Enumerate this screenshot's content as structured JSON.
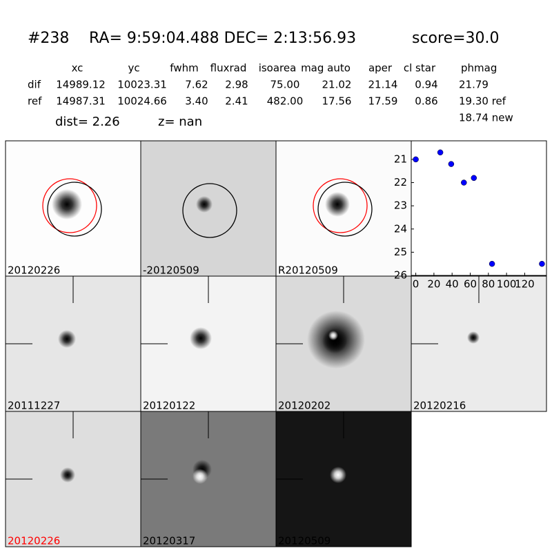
{
  "header": {
    "id": "#238",
    "coords": "RA= 9:59:04.488 DEC= 2:13:56.93",
    "score": "score=30.0"
  },
  "table": {
    "columns": [
      "xc",
      "yc",
      "fwhm",
      "fluxrad",
      "isoarea",
      "mag auto",
      "aper",
      "cl star",
      "phmag"
    ],
    "rows": [
      [
        "dif",
        "14989.12",
        "10023.31",
        "7.62",
        "2.98",
        "75.00",
        "21.02",
        "21.14",
        "0.94",
        "21.79"
      ],
      [
        "ref",
        "14987.31",
        "10024.66",
        "3.40",
        "2.41",
        "482.00",
        "17.56",
        "17.59",
        "0.86",
        "19.30 ref"
      ]
    ],
    "extra": "18.74 new"
  },
  "dist": "dist=  2.26",
  "z": "z=   nan",
  "panels": [
    {
      "label": "20120226"
    },
    {
      "label": "-20120509"
    },
    {
      "label": "R20120509"
    },
    {
      "label": "20111227"
    },
    {
      "label": "20120122"
    },
    {
      "label": "20120202"
    },
    {
      "label": "20120216"
    },
    {
      "label": "20120226",
      "color": "#ff0000"
    },
    {
      "label": "20120317"
    },
    {
      "label": "20120509"
    }
  ],
  "chart_data": {
    "type": "scatter",
    "x": [
      0,
      27,
      39,
      53,
      64,
      84,
      139
    ],
    "values": [
      21.0,
      20.7,
      21.2,
      22.0,
      21.8,
      25.5,
      25.5
    ],
    "color": "#0000ff",
    "xlim": [
      -5,
      144
    ],
    "ylim": [
      26,
      20.2
    ],
    "xticks": [
      0,
      20,
      40,
      60,
      80,
      100,
      120
    ],
    "yticks": [
      21,
      22,
      23,
      24,
      25,
      26
    ],
    "grid": false
  }
}
